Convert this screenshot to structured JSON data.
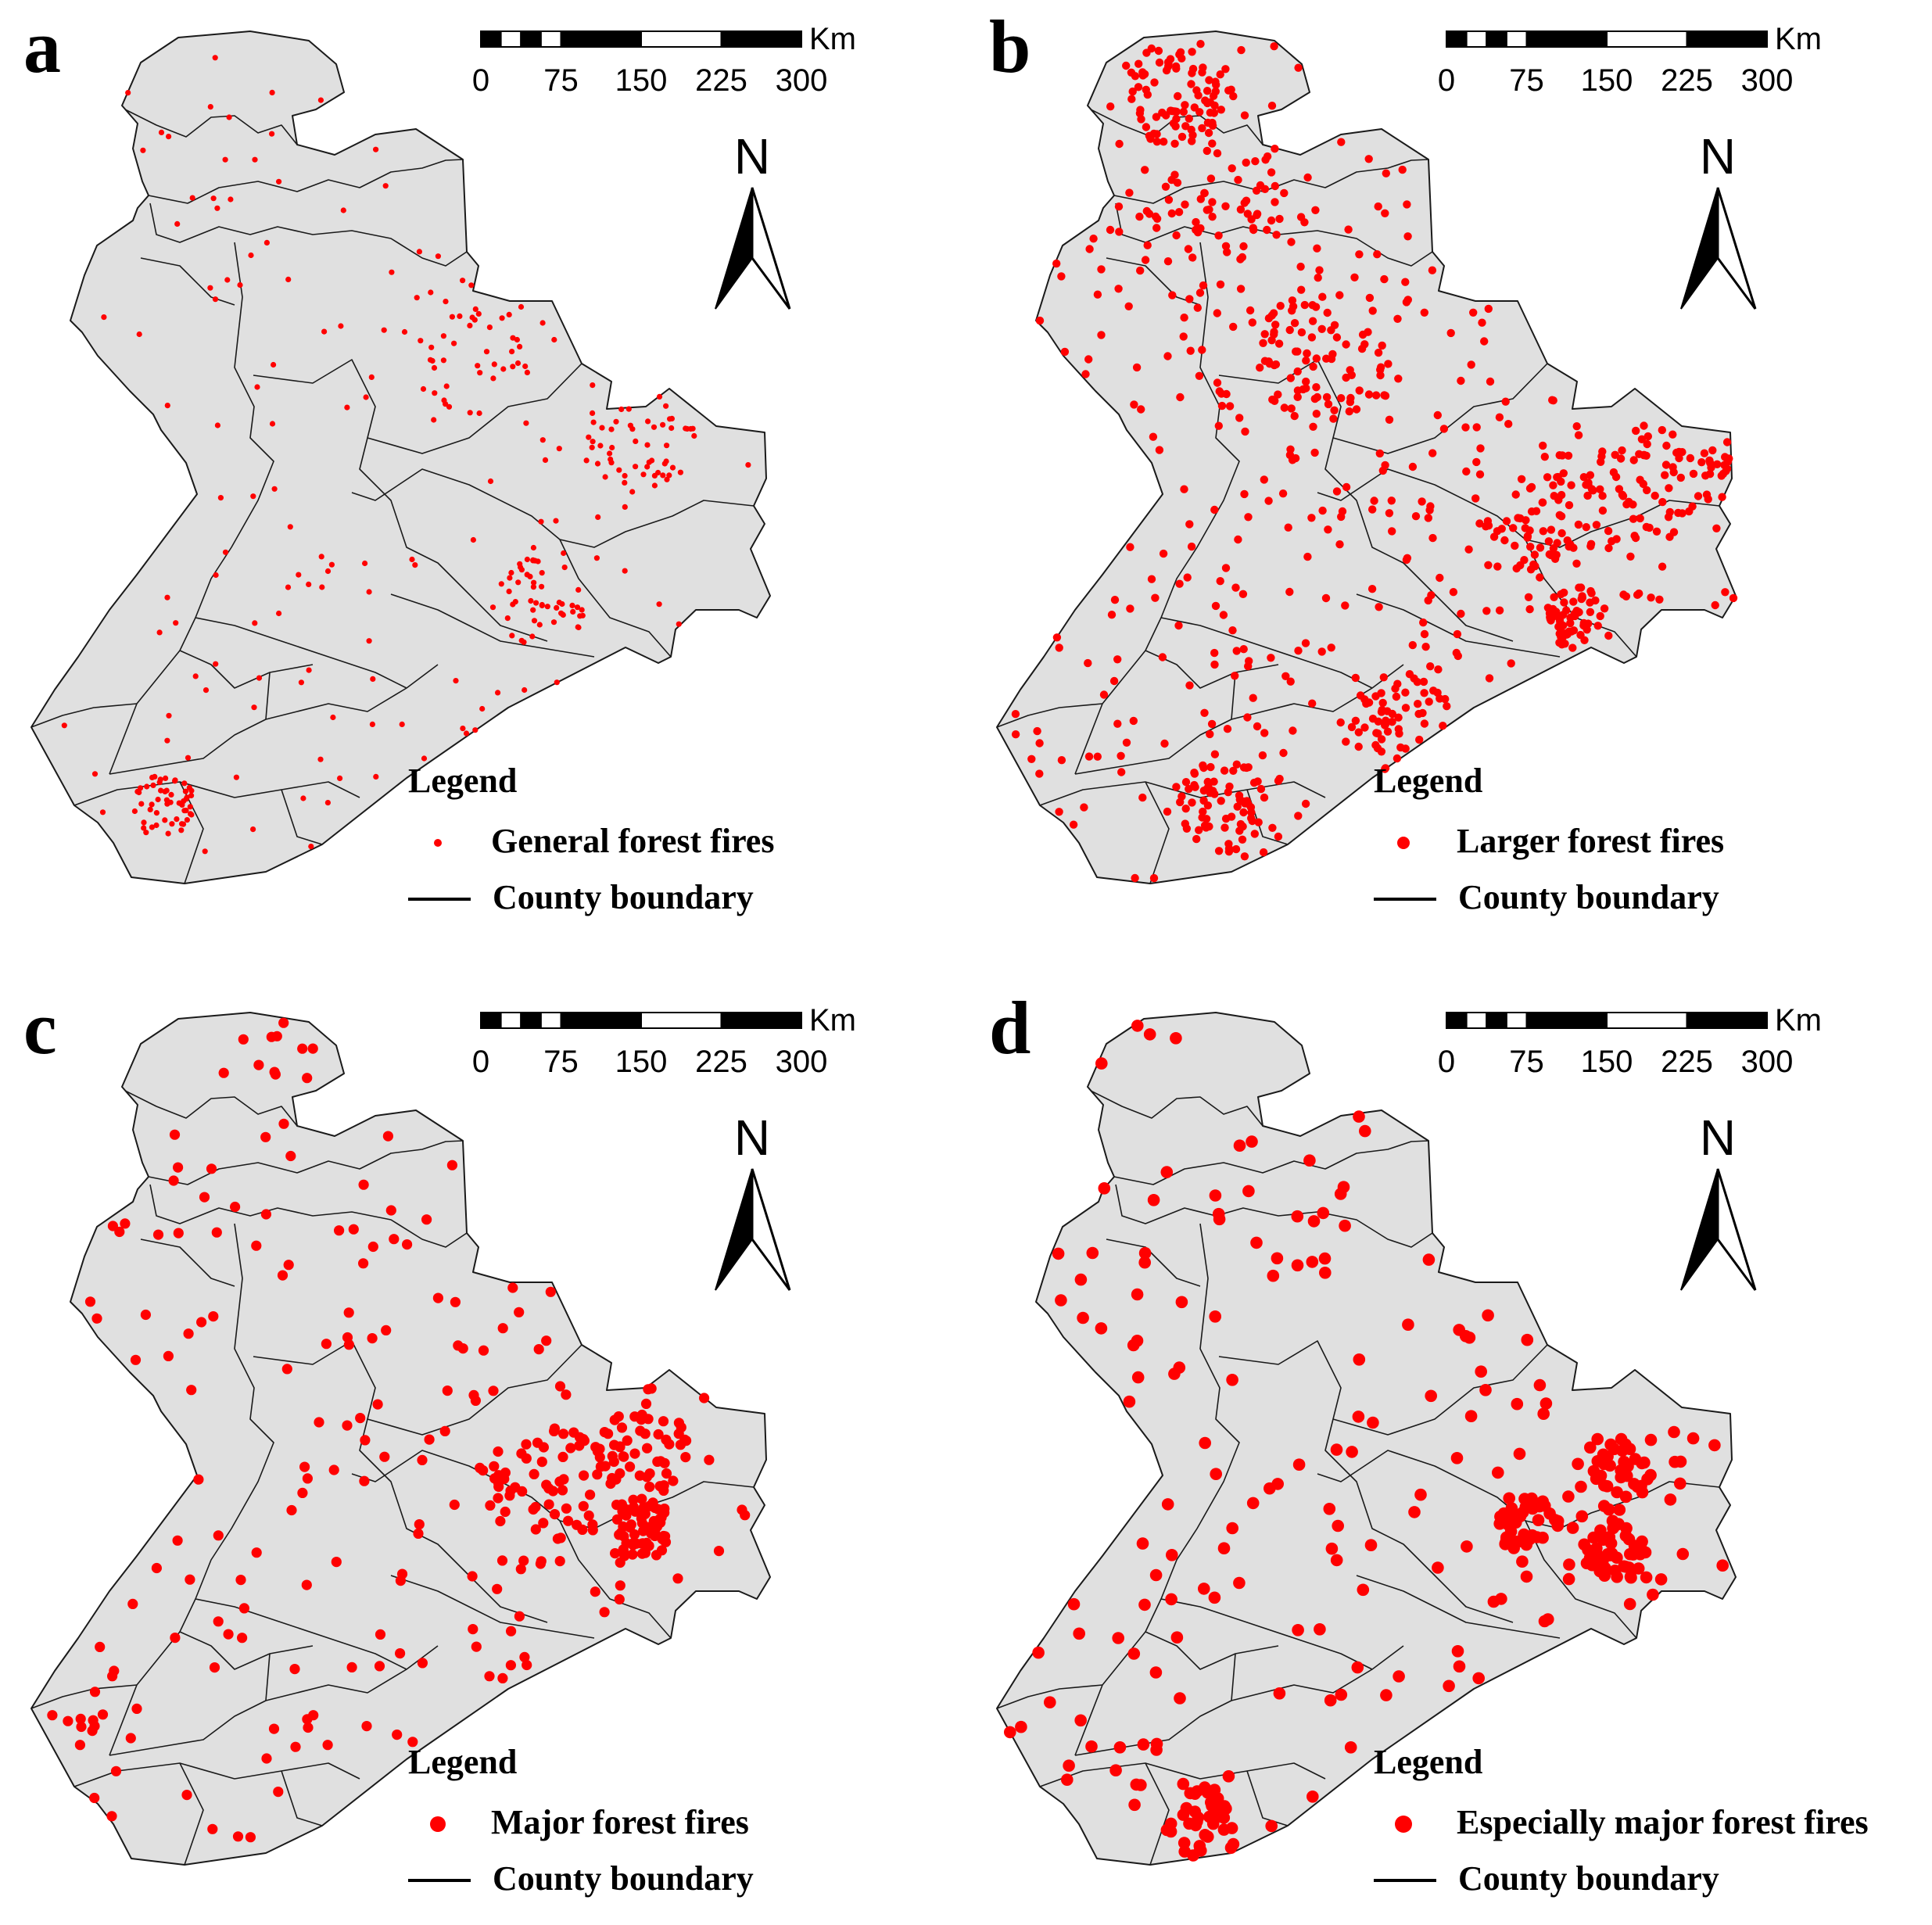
{
  "colors": {
    "fire": "#ff0000",
    "land": "#e0e0e0",
    "boundary": "#1a1a1a"
  },
  "scale_bar": {
    "unit": "Km",
    "ticks": [
      "0",
      "75",
      "150",
      "225",
      "300"
    ]
  },
  "north_arrow": {
    "label": "N"
  },
  "legend_common": {
    "title": "Legend",
    "boundary_label": "County boundary"
  },
  "panels": [
    {
      "letter": "a",
      "fire_label": "General forest fires",
      "fire_count_shown": 330
    },
    {
      "letter": "b",
      "fire_label": "Larger forest fires",
      "fire_count_shown": 900
    },
    {
      "letter": "c",
      "fire_label": "Major forest fires",
      "fire_count_shown": 360
    },
    {
      "letter": "d",
      "fire_label": "Especially major forest fires",
      "fire_count_shown": 330
    }
  ]
}
